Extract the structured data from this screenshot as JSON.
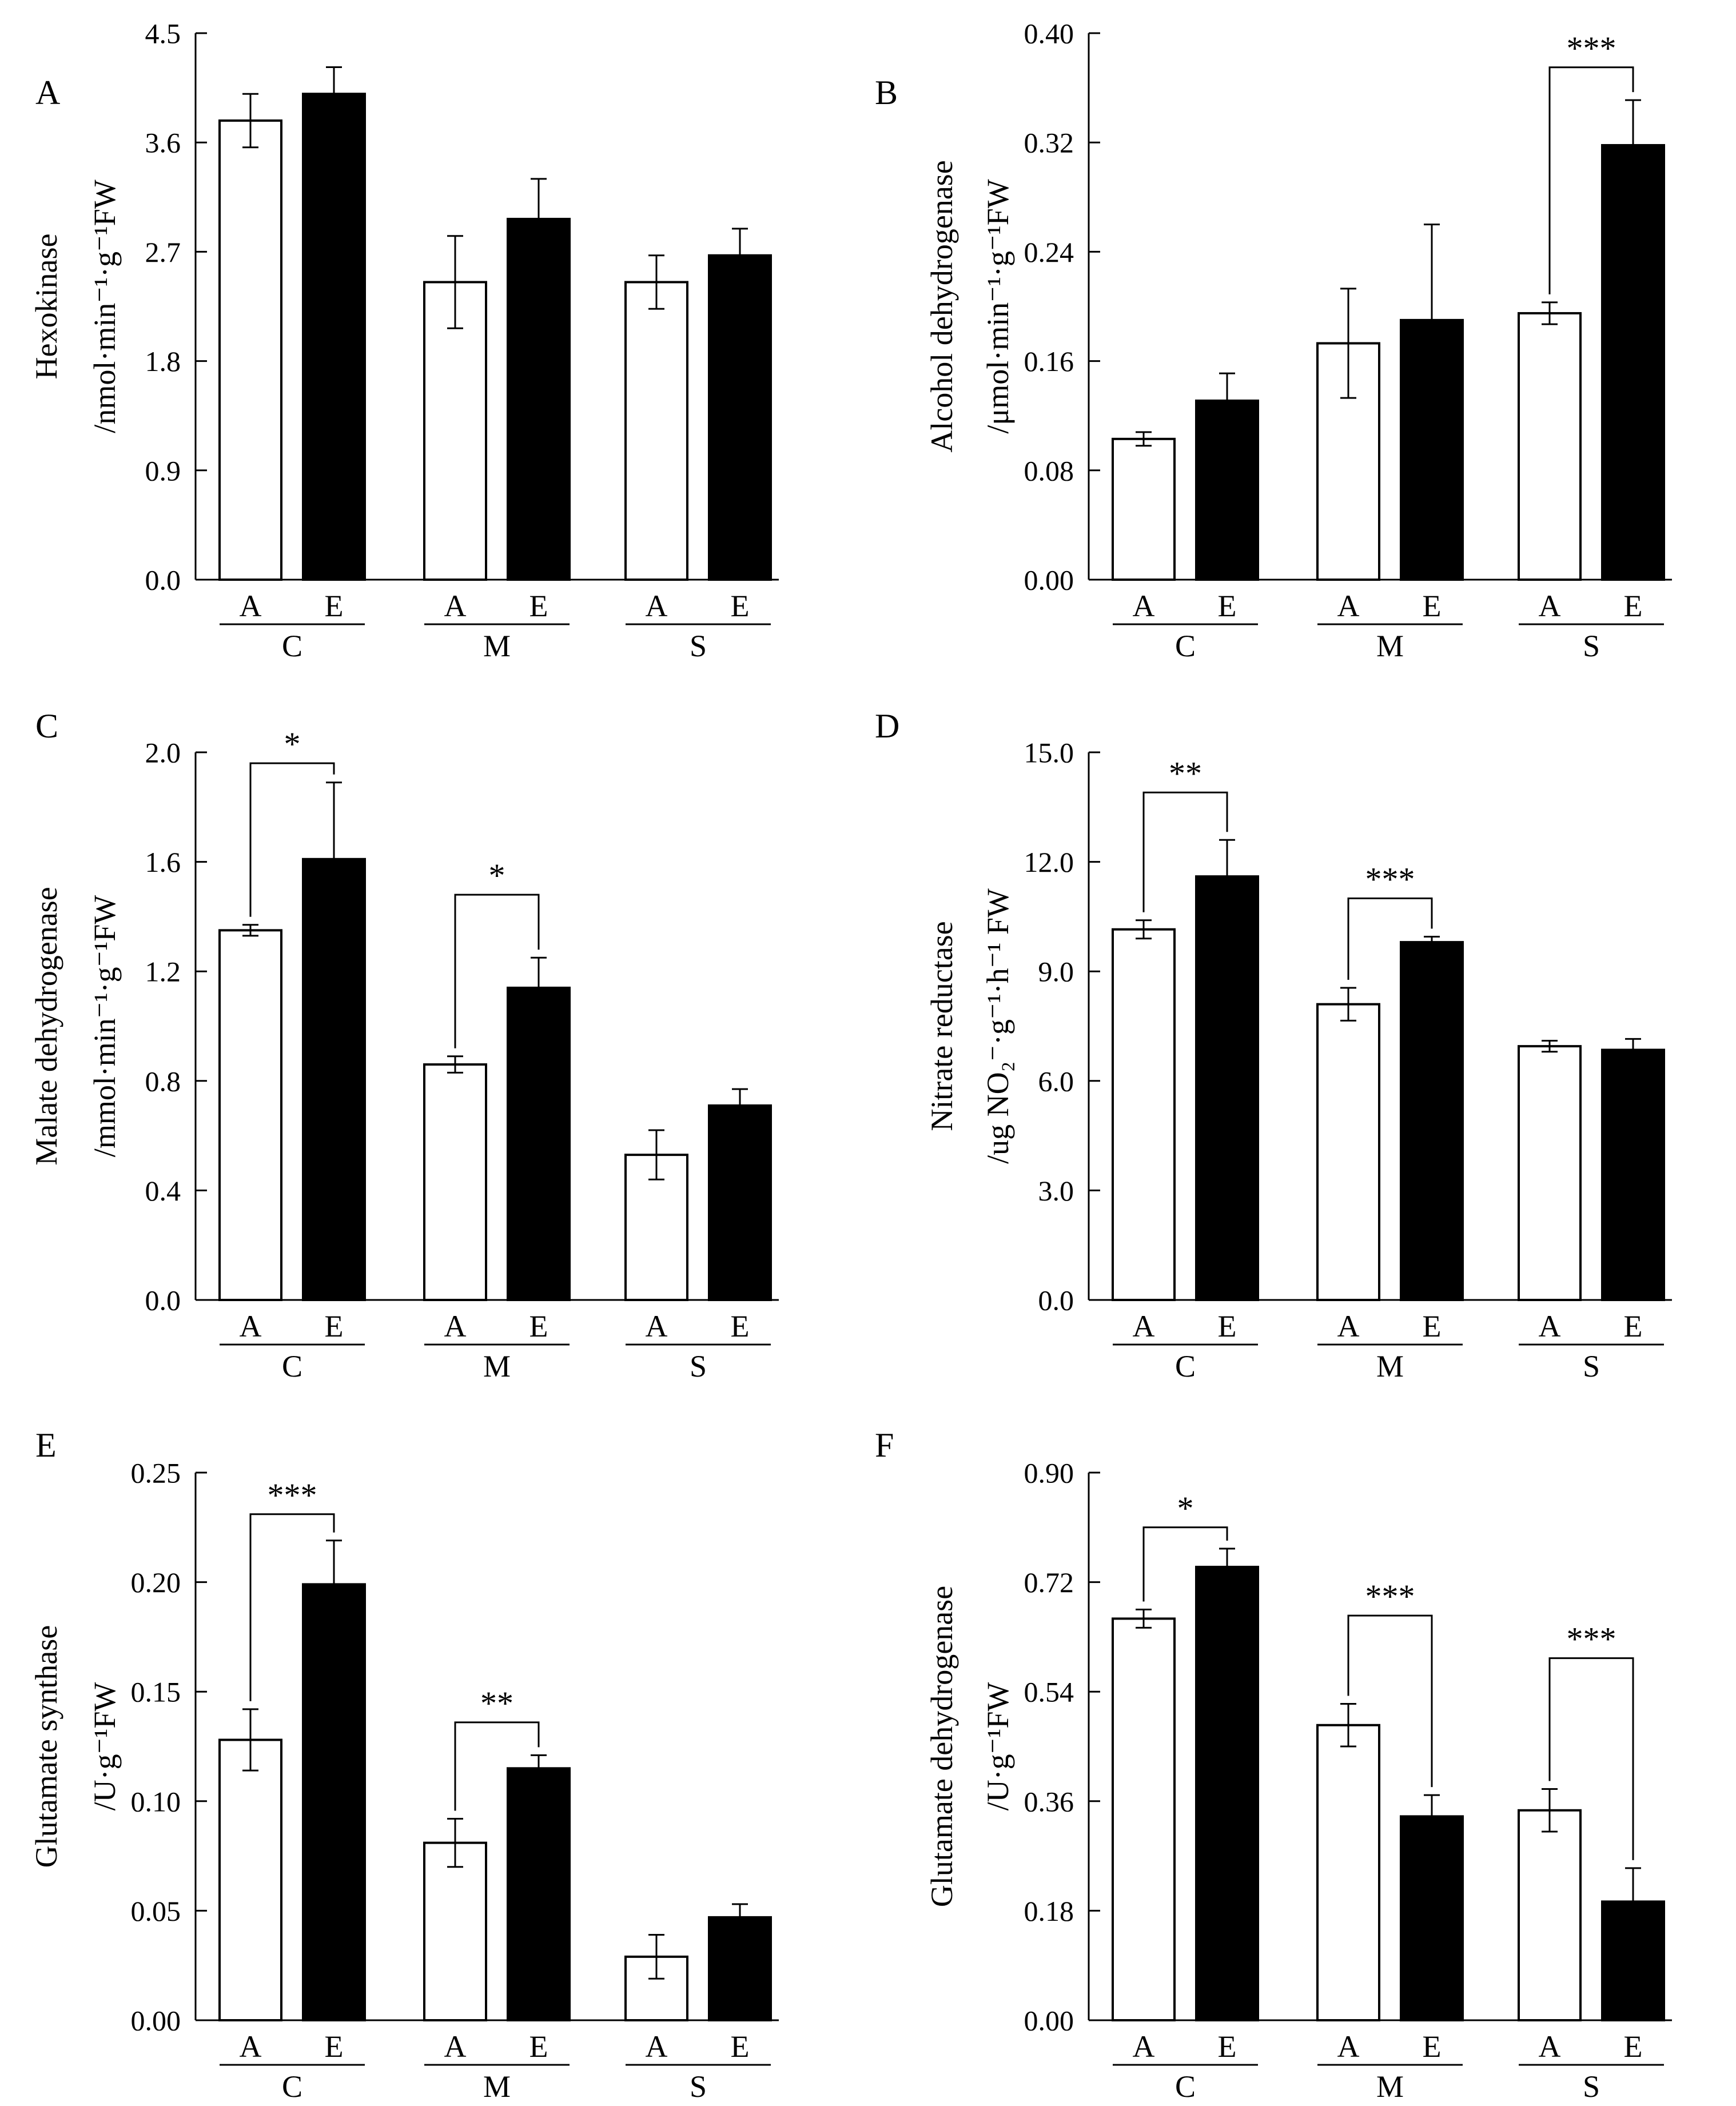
{
  "figure": {
    "panels": [
      {
        "letter": "A",
        "ylabel_line1": "Hexokinase",
        "ylabel_line2": "/nmol·min⁻¹·g⁻¹FW",
        "chart_data": {
          "type": "bar",
          "title": "",
          "categories": [
            "C",
            "M",
            "S"
          ],
          "sub_categories": [
            "A",
            "E"
          ],
          "series": [
            {
              "name": "A",
              "color": "#ffffff",
              "values": [
                3.78,
                2.45,
                2.45
              ],
              "errors": [
                0.22,
                0.38,
                0.22
              ]
            },
            {
              "name": "E",
              "color": "#000000",
              "values": [
                4.0,
                2.97,
                2.67
              ],
              "errors": [
                0.22,
                0.33,
                0.22
              ]
            }
          ],
          "ylim": [
            0,
            4.5
          ],
          "yticks": [
            "0.0",
            "0.9",
            "1.8",
            "2.7",
            "3.6",
            "4.5"
          ],
          "significance": []
        }
      },
      {
        "letter": "B",
        "ylabel_line1": "Alcohol dehydrogenase",
        "ylabel_line2": "/μmol·min⁻¹·g⁻¹FW",
        "chart_data": {
          "type": "bar",
          "title": "",
          "categories": [
            "C",
            "M",
            "S"
          ],
          "sub_categories": [
            "A",
            "E"
          ],
          "series": [
            {
              "name": "A",
              "color": "#ffffff",
              "values": [
                0.103,
                0.173,
                0.195
              ],
              "errors": [
                0.005,
                0.04,
                0.008
              ]
            },
            {
              "name": "E",
              "color": "#000000",
              "values": [
                0.131,
                0.19,
                0.318
              ],
              "errors": [
                0.02,
                0.07,
                0.033
              ]
            }
          ],
          "ylim": [
            0,
            0.4
          ],
          "yticks": [
            "0.00",
            "0.08",
            "0.16",
            "0.24",
            "0.32",
            "0.40"
          ],
          "significance": [
            {
              "group": 2,
              "label": "***",
              "y": 0.375
            }
          ]
        }
      },
      {
        "letter": "C",
        "ylabel_line1": "Malate dehydrogenase",
        "ylabel_line2": "/mmol·min⁻¹·g⁻¹FW",
        "chart_data": {
          "type": "bar",
          "title": "",
          "categories": [
            "C",
            "M",
            "S"
          ],
          "sub_categories": [
            "A",
            "E"
          ],
          "series": [
            {
              "name": "A",
              "color": "#ffffff",
              "values": [
                1.35,
                0.86,
                0.53
              ],
              "errors": [
                0.02,
                0.03,
                0.09
              ]
            },
            {
              "name": "E",
              "color": "#000000",
              "values": [
                1.61,
                1.14,
                0.71
              ],
              "errors": [
                0.28,
                0.11,
                0.06
              ]
            }
          ],
          "ylim": [
            0,
            2.0
          ],
          "yticks": [
            "0.0",
            "0.4",
            "0.8",
            "1.2",
            "1.6",
            "2.0"
          ],
          "significance": [
            {
              "group": 0,
              "label": "*",
              "y": 1.96
            },
            {
              "group": 1,
              "label": "*",
              "y": 1.48
            }
          ]
        }
      },
      {
        "letter": "D",
        "ylabel_line1": "Nitrate reductase",
        "ylabel_line2": "/ug NO₂⁻·g⁻¹·h⁻¹ FW",
        "chart_data": {
          "type": "bar",
          "title": "",
          "categories": [
            "C",
            "M",
            "S"
          ],
          "sub_categories": [
            "A",
            "E"
          ],
          "series": [
            {
              "name": "A",
              "color": "#ffffff",
              "values": [
                10.15,
                8.1,
                6.95
              ],
              "errors": [
                0.25,
                0.45,
                0.15
              ]
            },
            {
              "name": "E",
              "color": "#000000",
              "values": [
                11.6,
                9.8,
                6.85
              ],
              "errors": [
                1.0,
                0.15,
                0.3
              ]
            }
          ],
          "ylim": [
            0,
            15.0
          ],
          "yticks": [
            "0.0",
            "3.0",
            "6.0",
            "9.0",
            "12.0",
            "15.0"
          ],
          "significance": [
            {
              "group": 0,
              "label": "**",
              "y": 13.9
            },
            {
              "group": 1,
              "label": "***",
              "y": 11.0
            }
          ]
        }
      },
      {
        "letter": "E",
        "ylabel_line1": "Glutamate synthase",
        "ylabel_line2": "/U·g⁻¹FW",
        "chart_data": {
          "type": "bar",
          "title": "",
          "categories": [
            "C",
            "M",
            "S"
          ],
          "sub_categories": [
            "A",
            "E"
          ],
          "series": [
            {
              "name": "A",
              "color": "#ffffff",
              "values": [
                0.128,
                0.081,
                0.029
              ],
              "errors": [
                0.014,
                0.011,
                0.01
              ]
            },
            {
              "name": "E",
              "color": "#000000",
              "values": [
                0.199,
                0.115,
                0.047
              ],
              "errors": [
                0.02,
                0.006,
                0.006
              ]
            }
          ],
          "ylim": [
            0,
            0.25
          ],
          "yticks": [
            "0.00",
            "0.05",
            "0.10",
            "0.15",
            "0.20",
            "0.25"
          ],
          "significance": [
            {
              "group": 0,
              "label": "***",
              "y": 0.231
            },
            {
              "group": 1,
              "label": "**",
              "y": 0.136
            }
          ]
        }
      },
      {
        "letter": "F",
        "ylabel_line1": "Glutamate dehydrogenase",
        "ylabel_line2": "/U·g⁻¹FW",
        "chart_data": {
          "type": "bar",
          "title": "",
          "categories": [
            "C",
            "M",
            "S"
          ],
          "sub_categories": [
            "A",
            "E"
          ],
          "series": [
            {
              "name": "A",
              "color": "#ffffff",
              "values": [
                0.66,
                0.485,
                0.345
              ],
              "errors": [
                0.015,
                0.035,
                0.035
              ]
            },
            {
              "name": "E",
              "color": "#000000",
              "values": [
                0.745,
                0.335,
                0.195
              ],
              "errors": [
                0.03,
                0.035,
                0.055
              ]
            }
          ],
          "ylim": [
            0,
            0.9
          ],
          "yticks": [
            "0.00",
            "0.18",
            "0.36",
            "0.54",
            "0.72",
            "0.90"
          ],
          "significance": [
            {
              "group": 0,
              "label": "*",
              "y": 0.81
            },
            {
              "group": 1,
              "label": "***",
              "y": 0.665
            },
            {
              "group": 2,
              "label": "***",
              "y": 0.595
            }
          ]
        }
      }
    ]
  }
}
